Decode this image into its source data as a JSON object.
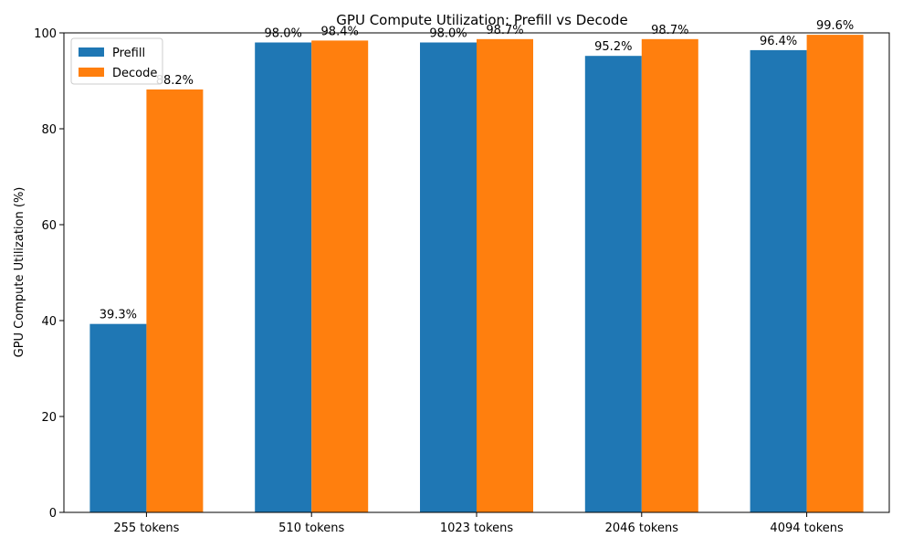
{
  "chart_data": {
    "type": "bar",
    "title": "GPU Compute Utilization: Prefill vs Decode",
    "xlabel": "",
    "ylabel": "GPU Compute Utilization (%)",
    "categories": [
      "255 tokens",
      "510 tokens",
      "1023 tokens",
      "2046 tokens",
      "4094 tokens"
    ],
    "series": [
      {
        "name": "Prefill",
        "color": "#1f77b4",
        "values": [
          39.3,
          98.0,
          98.0,
          95.2,
          96.4
        ],
        "labels": [
          "39.3%",
          "98.0%",
          "98.0%",
          "95.2%",
          "96.4%"
        ]
      },
      {
        "name": "Decode",
        "color": "#ff7f0e",
        "values": [
          88.2,
          98.4,
          98.7,
          98.7,
          99.6
        ],
        "labels": [
          "88.2%",
          "98.4%",
          "98.7%",
          "98.7%",
          "99.6%"
        ]
      }
    ],
    "ylim": [
      0,
      100
    ],
    "yticks": [
      0,
      20,
      40,
      60,
      80,
      100
    ],
    "ytick_labels": [
      "0",
      "20",
      "40",
      "60",
      "80",
      "100"
    ],
    "grid": false,
    "legend_position": "top-left"
  }
}
